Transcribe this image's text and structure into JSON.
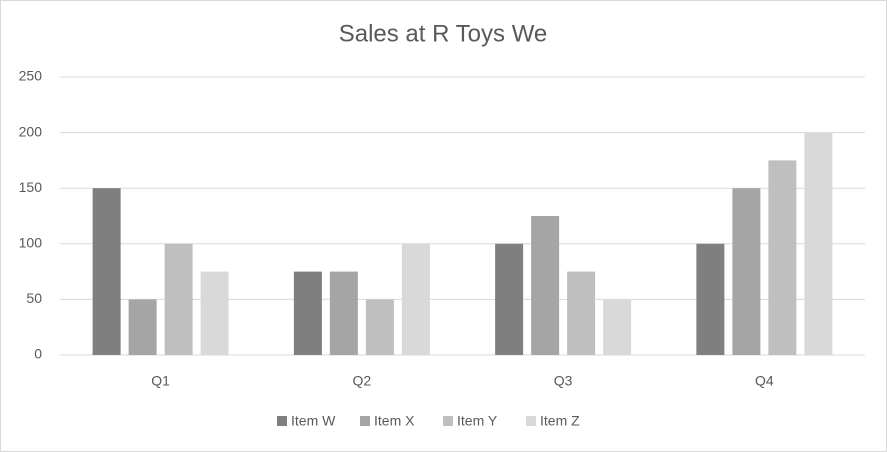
{
  "chart_data": {
    "type": "bar",
    "title": "Sales at R Toys We",
    "categories": [
      "Q1",
      "Q2",
      "Q3",
      "Q4"
    ],
    "series": [
      {
        "name": "Item W",
        "color": "#7f7f7f",
        "values": [
          150,
          75,
          100,
          100
        ]
      },
      {
        "name": "Item X",
        "color": "#a5a5a5",
        "values": [
          50,
          75,
          125,
          150
        ]
      },
      {
        "name": "Item Y",
        "color": "#bfbfbf",
        "values": [
          100,
          50,
          75,
          175
        ]
      },
      {
        "name": "Item Z",
        "color": "#d9d9d9",
        "values": [
          75,
          100,
          50,
          200
        ]
      }
    ],
    "ylim": [
      0,
      250
    ],
    "yticks": [
      0,
      50,
      100,
      150,
      200,
      250
    ],
    "grid": true,
    "legend": "bottom"
  }
}
